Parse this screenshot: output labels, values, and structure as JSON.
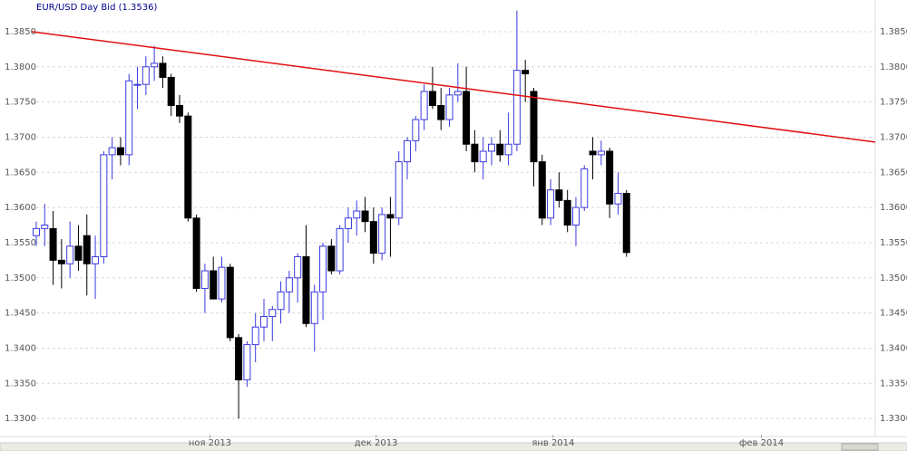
{
  "chart_data": {
    "type": "candlestick",
    "title": "EUR/USD Day Bid (1.3536)",
    "series": [
      {
        "up_color": "#ffffff",
        "up_edge": "#3a3ae0",
        "down_color": "#000000",
        "open": [
          1.356,
          1.357,
          1.357,
          1.3525,
          1.352,
          1.3545,
          1.356,
          1.352,
          1.353,
          1.3675,
          1.3685,
          1.3675,
          1.3775,
          1.3775,
          1.38,
          1.3805,
          1.3785,
          1.3745,
          1.373,
          1.3585,
          1.3485,
          1.351,
          1.347,
          1.3515,
          1.3415,
          1.3355,
          1.3405,
          1.343,
          1.3445,
          1.3455,
          1.348,
          1.35,
          1.353,
          1.3435,
          1.348,
          1.3545,
          1.351,
          1.357,
          1.3585,
          1.3595,
          1.358,
          1.3535,
          1.359,
          1.3585,
          1.3665,
          1.3695,
          1.3725,
          1.3765,
          1.3745,
          1.3725,
          1.376,
          1.3765,
          1.369,
          1.3665,
          1.368,
          1.369,
          1.3675,
          1.369,
          1.3795,
          1.3765,
          1.3665,
          1.3585,
          1.3625,
          1.361,
          1.3575,
          1.36,
          1.368,
          1.3675,
          1.368,
          1.3605,
          1.362
        ],
        "high": [
          1.358,
          1.3605,
          1.3595,
          1.3555,
          1.358,
          1.3575,
          1.359,
          1.356,
          1.368,
          1.37,
          1.37,
          1.379,
          1.38,
          1.3815,
          1.383,
          1.3815,
          1.379,
          1.376,
          1.3735,
          1.359,
          1.352,
          1.353,
          1.353,
          1.352,
          1.342,
          1.341,
          1.345,
          1.347,
          1.346,
          1.3495,
          1.351,
          1.3535,
          1.3575,
          1.349,
          1.355,
          1.3555,
          1.3575,
          1.36,
          1.361,
          1.3615,
          1.36,
          1.36,
          1.3615,
          1.368,
          1.37,
          1.373,
          1.3775,
          1.38,
          1.377,
          1.377,
          1.3805,
          1.38,
          1.371,
          1.37,
          1.37,
          1.371,
          1.3735,
          1.388,
          1.381,
          1.377,
          1.3675,
          1.364,
          1.365,
          1.3625,
          1.3615,
          1.366,
          1.37,
          1.3695,
          1.3685,
          1.365,
          1.3625
        ],
        "low": [
          1.3545,
          1.3545,
          1.349,
          1.3485,
          1.35,
          1.351,
          1.3475,
          1.347,
          1.352,
          1.364,
          1.366,
          1.366,
          1.374,
          1.376,
          1.378,
          1.377,
          1.373,
          1.372,
          1.358,
          1.348,
          1.345,
          1.347,
          1.3465,
          1.341,
          1.33,
          1.3345,
          1.338,
          1.341,
          1.341,
          1.3435,
          1.345,
          1.3465,
          1.343,
          1.3395,
          1.344,
          1.3505,
          1.3505,
          1.355,
          1.356,
          1.3565,
          1.352,
          1.3525,
          1.353,
          1.3575,
          1.364,
          1.368,
          1.371,
          1.374,
          1.371,
          1.3715,
          1.375,
          1.368,
          1.365,
          1.364,
          1.366,
          1.3665,
          1.366,
          1.368,
          1.375,
          1.363,
          1.3575,
          1.3575,
          1.36,
          1.3565,
          1.3545,
          1.3595,
          1.364,
          1.366,
          1.3585,
          1.359,
          1.353
        ],
        "close": [
          1.357,
          1.3575,
          1.3525,
          1.352,
          1.3545,
          1.3525,
          1.352,
          1.353,
          1.3675,
          1.3685,
          1.3675,
          1.378,
          1.3775,
          1.38,
          1.3805,
          1.3785,
          1.3745,
          1.373,
          1.3585,
          1.3485,
          1.351,
          1.347,
          1.3515,
          1.3415,
          1.3355,
          1.3405,
          1.343,
          1.3445,
          1.3455,
          1.348,
          1.35,
          1.353,
          1.3435,
          1.348,
          1.3545,
          1.351,
          1.357,
          1.3585,
          1.3595,
          1.358,
          1.3535,
          1.359,
          1.3585,
          1.3665,
          1.3695,
          1.3725,
          1.3765,
          1.3745,
          1.3725,
          1.376,
          1.3765,
          1.369,
          1.3665,
          1.368,
          1.369,
          1.3675,
          1.369,
          1.3795,
          1.379,
          1.3665,
          1.3585,
          1.3625,
          1.361,
          1.3575,
          1.36,
          1.3655,
          1.3675,
          1.368,
          1.3605,
          1.362,
          1.3536
        ]
      }
    ],
    "xlim": [
      -4.3,
      99.5
    ],
    "xticks": [
      {
        "value": 20.6,
        "label": "ноя 2013"
      },
      {
        "value": 40.3,
        "label": "дек 2013"
      },
      {
        "value": 61.3,
        "label": "янв 2014"
      },
      {
        "value": 86,
        "label": "фев 2014"
      }
    ],
    "ylim": [
      1.3277,
      1.3895
    ],
    "yticks": [
      {
        "value": 1.33,
        "label": "1.3300"
      },
      {
        "value": 1.335,
        "label": "1.3350"
      },
      {
        "value": 1.34,
        "label": "1.3400"
      },
      {
        "value": 1.345,
        "label": "1.3450"
      },
      {
        "value": 1.35,
        "label": "1.3500"
      },
      {
        "value": 1.355,
        "label": "1.3550"
      },
      {
        "value": 1.36,
        "label": "1.3600"
      },
      {
        "value": 1.365,
        "label": "1.3650"
      },
      {
        "value": 1.37,
        "label": "1.3700"
      },
      {
        "value": 1.375,
        "label": "1.3750"
      },
      {
        "value": 1.38,
        "label": "1.3800"
      },
      {
        "value": 1.385,
        "label": "1.3850"
      }
    ],
    "grid": true,
    "trendline": {
      "color": "#e01010",
      "x": [
        -0.54,
        99.5
      ],
      "y": [
        1.385,
        1.3693
      ]
    }
  }
}
